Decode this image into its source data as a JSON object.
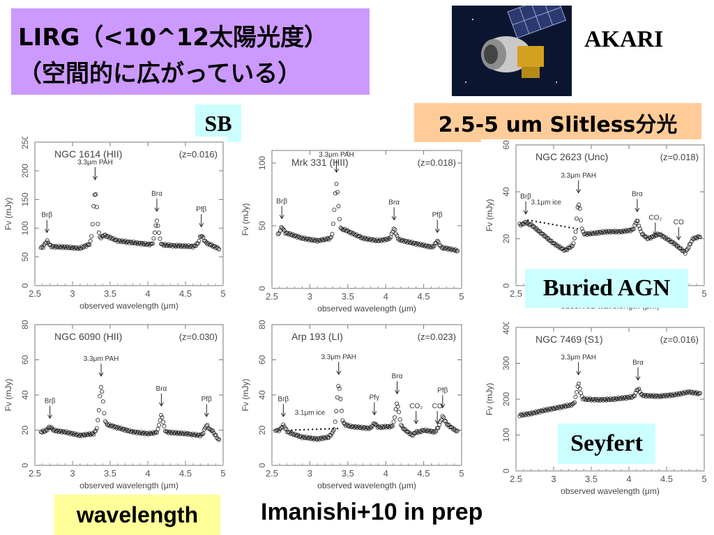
{
  "slide": {
    "title_line1": "LIRG（<10^12太陽光度）",
    "title_line2": "（空間的に広がっている）",
    "satellite_name": "AKARI",
    "label_sb": "SB",
    "label_slitless": "2.5-5 um Slitless分光",
    "label_buried": "Buried AGN",
    "label_seyfert": "Seyfert",
    "label_wavelength": "wavelength",
    "credit": "Imanishi+10 in prep",
    "satellite_image": "akari-satellite-image"
  },
  "chart_data": [
    {
      "type": "scatter",
      "title": "NGC 1614 (HII)",
      "redshift": "(z=0.016)",
      "xlabel": "observed wavelength (μm)",
      "ylabel": "Fν (mJy)",
      "xlim": [
        2.5,
        5
      ],
      "ylim": [
        0,
        250
      ],
      "xticks": [
        "2.5",
        "3",
        "3.5",
        "4",
        "4.5",
        "5"
      ],
      "yticks": [
        "0",
        "50",
        "100",
        "150",
        "200",
        "250"
      ],
      "baseline": [
        [
          2.58,
          66
        ],
        [
          2.7,
          68
        ],
        [
          2.9,
          67
        ],
        [
          3.1,
          65
        ],
        [
          3.28,
          75
        ],
        [
          3.35,
          80
        ],
        [
          3.42,
          88
        ],
        [
          3.6,
          78
        ],
        [
          3.8,
          75
        ],
        [
          4.0,
          72
        ],
        [
          4.3,
          70
        ],
        [
          4.6,
          68
        ],
        [
          4.75,
          76
        ],
        [
          4.95,
          64
        ]
      ],
      "features": [
        {
          "x": 2.66,
          "y": 78,
          "label": "Brβ"
        },
        {
          "x": 3.3,
          "y": 170,
          "label": "3.3μm PAH"
        },
        {
          "x": 4.12,
          "y": 115,
          "label": "Brα"
        },
        {
          "x": 4.71,
          "y": 88,
          "label": "Pfβ"
        }
      ],
      "ice_label": "",
      "ice_line": null
    },
    {
      "type": "scatter",
      "title": "Mrk 331 (HII)",
      "redshift": "(z=0.018)",
      "xlabel": "observed wavelength (μm)",
      "ylabel": "Fν (mJy)",
      "xlim": [
        2.5,
        5
      ],
      "ylim": [
        0,
        110
      ],
      "xticks": [
        "2.5",
        "3",
        "3.5",
        "4",
        "4.5",
        "5"
      ],
      "yticks": [
        "0",
        "50",
        "100"
      ],
      "baseline": [
        [
          2.58,
          42
        ],
        [
          2.7,
          44
        ],
        [
          2.9,
          40
        ],
        [
          3.1,
          38
        ],
        [
          3.28,
          40
        ],
        [
          3.35,
          45
        ],
        [
          3.45,
          47
        ],
        [
          3.7,
          40
        ],
        [
          3.9,
          38
        ],
        [
          4.1,
          40
        ],
        [
          4.3,
          37
        ],
        [
          4.6,
          33
        ],
        [
          4.8,
          32
        ],
        [
          4.95,
          30
        ]
      ],
      "features": [
        {
          "x": 2.63,
          "y": 49,
          "label": "Brβ"
        },
        {
          "x": 3.35,
          "y": 86,
          "label": "3.3μm PAH"
        },
        {
          "x": 4.11,
          "y": 48,
          "label": "Brα"
        },
        {
          "x": 4.68,
          "y": 38,
          "label": "Pfβ"
        }
      ],
      "ice_label": "",
      "ice_line": null
    },
    {
      "type": "scatter",
      "title": "NGC 2623 (Unc)",
      "redshift": "(z=0.018)",
      "xlabel": "observed wavelength (μm)",
      "ylabel": "Fν (mJy)",
      "xlim": [
        2.5,
        5
      ],
      "ylim": [
        0,
        60
      ],
      "xticks": [
        "2.5",
        "3",
        "3.5",
        "4",
        "4.5",
        "5"
      ],
      "yticks": [
        "0",
        "20",
        "40",
        "60"
      ],
      "baseline": [
        [
          2.55,
          26
        ],
        [
          2.7,
          26
        ],
        [
          2.85,
          22
        ],
        [
          3.0,
          18
        ],
        [
          3.15,
          15
        ],
        [
          3.25,
          17
        ],
        [
          3.35,
          22
        ],
        [
          3.45,
          22
        ],
        [
          3.7,
          23
        ],
        [
          3.9,
          23
        ],
        [
          4.1,
          24
        ],
        [
          4.25,
          20
        ],
        [
          4.4,
          22
        ],
        [
          4.6,
          18
        ],
        [
          4.75,
          14
        ],
        [
          4.85,
          20
        ],
        [
          4.95,
          21
        ]
      ],
      "features": [
        {
          "x": 2.63,
          "y": 27,
          "label": "Brβ"
        },
        {
          "x": 3.33,
          "y": 36,
          "label": "3.3μm PAH"
        },
        {
          "x": 4.11,
          "y": 28,
          "label": "Brα"
        },
        {
          "x": 4.35,
          "y": 18,
          "label": "CO₂"
        },
        {
          "x": 4.66,
          "y": 16,
          "label": "CO"
        }
      ],
      "ice_label": "3.1μm ice",
      "ice_line": [
        [
          2.65,
          28
        ],
        [
          3.35,
          24
        ]
      ]
    },
    {
      "type": "scatter",
      "title": "NGC 6090 (HII)",
      "redshift": "(z=0.030)",
      "xlabel": "observed wavelength (μm)",
      "ylabel": "Fν (mJy)",
      "xlim": [
        2.5,
        5
      ],
      "ylim": [
        0,
        80
      ],
      "xticks": [
        "2.5",
        "3",
        "3.5",
        "4",
        "4.5",
        "5"
      ],
      "yticks": [
        "0",
        "20",
        "40",
        "60",
        "80"
      ],
      "baseline": [
        [
          2.58,
          19
        ],
        [
          2.7,
          20
        ],
        [
          2.9,
          19
        ],
        [
          3.1,
          17
        ],
        [
          3.28,
          18
        ],
        [
          3.4,
          24
        ],
        [
          3.55,
          22
        ],
        [
          3.8,
          19
        ],
        [
          4.0,
          18
        ],
        [
          4.2,
          19
        ],
        [
          4.5,
          18
        ],
        [
          4.7,
          17
        ],
        [
          4.85,
          20
        ],
        [
          4.95,
          14
        ]
      ],
      "features": [
        {
          "x": 2.7,
          "y": 22,
          "label": "Brβ"
        },
        {
          "x": 3.38,
          "y": 46,
          "label": "3.3μm PAH"
        },
        {
          "x": 4.18,
          "y": 29,
          "label": "Brα"
        },
        {
          "x": 4.78,
          "y": 23,
          "label": "Pfβ"
        }
      ],
      "ice_label": "",
      "ice_line": null
    },
    {
      "type": "scatter",
      "title": "Arp 193 (LI)",
      "redshift": "(z=0.023)",
      "xlabel": "observed wavelength (μm)",
      "ylabel": "Fν (mJy)",
      "xlim": [
        2.5,
        5
      ],
      "ylim": [
        0,
        80
      ],
      "xticks": [
        "2.5",
        "3",
        "3.5",
        "4",
        "4.5",
        "5"
      ],
      "yticks": [
        "0",
        "20",
        "40",
        "60",
        "80"
      ],
      "baseline": [
        [
          2.55,
          20
        ],
        [
          2.7,
          19
        ],
        [
          2.9,
          16
        ],
        [
          3.1,
          15
        ],
        [
          3.25,
          16
        ],
        [
          3.4,
          24
        ],
        [
          3.55,
          22
        ],
        [
          3.8,
          21
        ],
        [
          4.0,
          22
        ],
        [
          4.2,
          22
        ],
        [
          4.35,
          17
        ],
        [
          4.5,
          20
        ],
        [
          4.65,
          19
        ],
        [
          4.75,
          25
        ],
        [
          4.95,
          19
        ]
      ],
      "features": [
        {
          "x": 2.65,
          "y": 23,
          "label": "Brβ"
        },
        {
          "x": 3.38,
          "y": 47,
          "label": "3.3μm PAH"
        },
        {
          "x": 3.85,
          "y": 24,
          "label": "Pfγ"
        },
        {
          "x": 4.15,
          "y": 36,
          "label": "Brα"
        },
        {
          "x": 4.4,
          "y": 19,
          "label": "CO₂"
        },
        {
          "x": 4.68,
          "y": 19,
          "label": "CO"
        },
        {
          "x": 4.75,
          "y": 28,
          "label": "Pfβ"
        }
      ],
      "ice_label": "3.1μm ice",
      "ice_line": [
        [
          2.75,
          20
        ],
        [
          3.4,
          21
        ]
      ]
    },
    {
      "type": "scatter",
      "title": "NGC 7469 (S1)",
      "redshift": "(z=0.016)",
      "xlabel": "observed wavelength (μm)",
      "ylabel": "Fν (mJy)",
      "xlim": [
        2.5,
        5
      ],
      "ylim": [
        0,
        400
      ],
      "xticks": [
        "2.5",
        "3",
        "3.5",
        "4",
        "4.5",
        "5"
      ],
      "yticks": [
        "0",
        "100",
        "200",
        "300",
        "400"
      ],
      "baseline": [
        [
          2.55,
          155
        ],
        [
          2.7,
          160
        ],
        [
          2.9,
          170
        ],
        [
          3.1,
          178
        ],
        [
          3.25,
          185
        ],
        [
          3.4,
          200
        ],
        [
          3.6,
          198
        ],
        [
          3.8,
          200
        ],
        [
          4.0,
          205
        ],
        [
          4.2,
          210
        ],
        [
          4.4,
          208
        ],
        [
          4.6,
          212
        ],
        [
          4.8,
          220
        ],
        [
          4.95,
          215
        ]
      ],
      "features": [
        {
          "x": 3.33,
          "y": 245,
          "label": "3.3μm PAH"
        },
        {
          "x": 4.12,
          "y": 230,
          "label": "Brα"
        }
      ],
      "ice_label": "",
      "ice_line": null
    }
  ]
}
